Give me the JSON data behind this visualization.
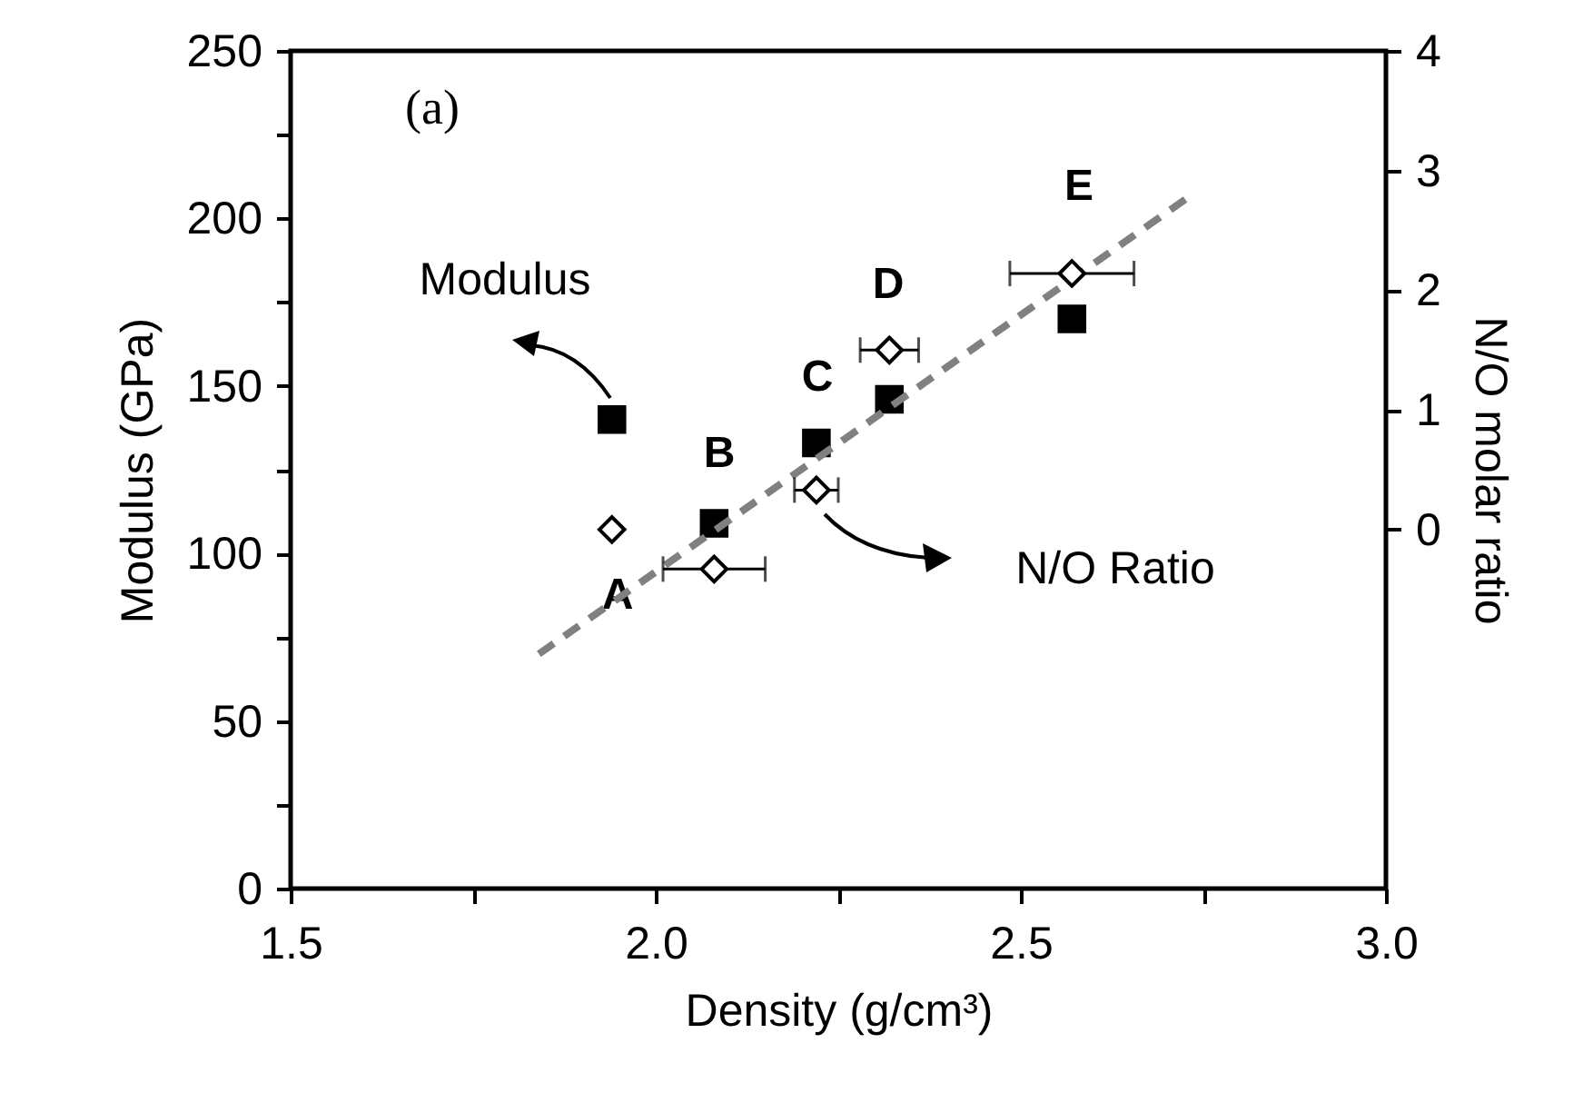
{
  "chart_data": {
    "type": "scatter",
    "xlabel": "Density (g/cm³)",
    "ylabel": "Modulus (GPa)",
    "y2label": "N/O molar ratio",
    "xlim": [
      1.5,
      3.0
    ],
    "xticks": [
      1.5,
      {
        "value": 1.75,
        "label": null
      },
      {
        "value": 2,
        "label": "2.0"
      },
      {
        "value": 2.25,
        "label": null
      },
      2.5,
      {
        "value": 2.75,
        "label": null
      },
      {
        "value": 3,
        "label": "3.0"
      }
    ],
    "ylim": [
      0,
      250
    ],
    "yticks": [
      0,
      {
        "value": 25,
        "label": null
      },
      50,
      {
        "value": 75,
        "label": null
      },
      100,
      {
        "value": 125,
        "label": null
      },
      150,
      {
        "value": 175,
        "label": null
      },
      200,
      {
        "value": 225,
        "label": null
      },
      250
    ],
    "y2lim": [
      -3,
      4
    ],
    "y2ticks": [
      0,
      1,
      2,
      3,
      4
    ],
    "grid": false,
    "series": [
      {
        "marker": "square",
        "color": "#000000",
        "x": [
          1.94,
          2.08,
          2.22,
          2.32,
          2.57
        ],
        "values": [
          140,
          109,
          133,
          146,
          170
        ]
      },
      {
        "marker": "diamond",
        "color": "#000000",
        "axis": "y2",
        "x": [
          1.94,
          2.08,
          2.22,
          2.32,
          2.57
        ],
        "values": [
          0.0,
          -0.33,
          0.33,
          1.5,
          2.14
        ],
        "xerrors": [
          null,
          0.07,
          0.03,
          0.04,
          0.085
        ]
      },
      {
        "type": "line",
        "line_style": "dashed",
        "color": "#808080",
        "axis": "y2",
        "x": [
          1.84,
          2.73
        ],
        "values": [
          -1.04,
          2.78
        ]
      }
    ],
    "annotations": [
      "(a)",
      "Modulus",
      "N/O Ratio",
      "A",
      "B",
      "C",
      "D",
      "E"
    ]
  }
}
